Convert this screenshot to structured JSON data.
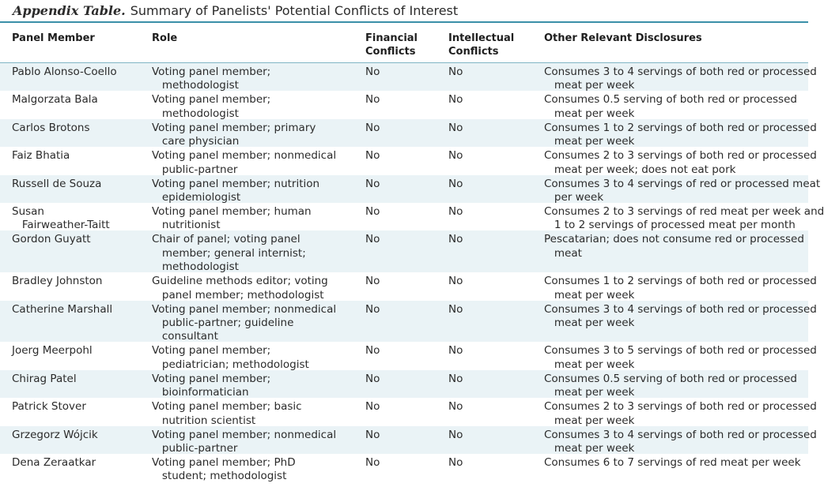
{
  "table": {
    "label": "Appendix Table.",
    "title": "Summary of Panelists' Potential Conflicts of Interest",
    "headers": {
      "name": "Panel Member",
      "role": "Role",
      "financial": "Financial\nConflicts",
      "intellectual": "Intellectual\nConflicts",
      "other": "Other Relevant Disclosures"
    },
    "rows": [
      {
        "name": "Pablo Alonso-Coello",
        "role": "Voting panel member;\n   methodologist",
        "financial": "No",
        "intellectual": "No",
        "other": "Consumes 3 to 4 servings of both red or processed\n   meat per week"
      },
      {
        "name": "Malgorzata Bala",
        "role": "Voting panel member;\n   methodologist",
        "financial": "No",
        "intellectual": "No",
        "other": "Consumes 0.5 serving of both red or processed\n   meat per week"
      },
      {
        "name": "Carlos Brotons",
        "role": "Voting panel member; primary\n   care physician",
        "financial": "No",
        "intellectual": "No",
        "other": "Consumes 1 to 2 servings of both red or processed\n   meat per week"
      },
      {
        "name": "Faiz Bhatia",
        "role": "Voting panel member; nonmedical\n   public-partner",
        "financial": "No",
        "intellectual": "No",
        "other": "Consumes 2 to 3 servings of both red or processed\n   meat per week; does not eat pork"
      },
      {
        "name": "Russell de Souza",
        "role": "Voting panel member; nutrition\n   epidemiologist",
        "financial": "No",
        "intellectual": "No",
        "other": "Consumes 3 to 4 servings of red or processed meat\n   per week"
      },
      {
        "name": "Susan\n   Fairweather-Taitt",
        "role": "Voting panel member; human\n   nutritionist",
        "financial": "No",
        "intellectual": "No",
        "other": "Consumes 2 to 3 servings of red meat per week and\n   1 to 2 servings of processed meat per month"
      },
      {
        "name": "Gordon Guyatt",
        "role": "Chair of panel; voting panel\n   member; general internist;\n   methodologist",
        "financial": "No",
        "intellectual": "No",
        "other": "Pescatarian; does not consume red or processed\n   meat"
      },
      {
        "name": "Bradley Johnston",
        "role": "Guideline methods editor; voting\n   panel member; methodologist",
        "financial": "No",
        "intellectual": "No",
        "other": "Consumes 1 to 2 servings of both red or processed\n   meat per week"
      },
      {
        "name": "Catherine Marshall",
        "role": "Voting panel member; nonmedical\n   public-partner; guideline\n   consultant",
        "financial": "No",
        "intellectual": "No",
        "other": "Consumes 3 to 4 servings of both red or processed\n   meat per week"
      },
      {
        "name": "Joerg Meerpohl",
        "role": "Voting panel member;\n   pediatrician; methodologist",
        "financial": "No",
        "intellectual": "No",
        "other": "Consumes 3 to 5 servings of both red or processed\n   meat per week"
      },
      {
        "name": "Chirag Patel",
        "role": "Voting panel member;\n   bioinformatician",
        "financial": "No",
        "intellectual": "No",
        "other": "Consumes 0.5 serving of both red or processed\n   meat per week"
      },
      {
        "name": "Patrick Stover",
        "role": "Voting panel member; basic\n   nutrition scientist",
        "financial": "No",
        "intellectual": "No",
        "other": "Consumes 2 to 3 servings of both red or processed\n   meat per week"
      },
      {
        "name": "Grzegorz Wójcik",
        "role": "Voting panel member; nonmedical\n   public-partner",
        "financial": "No",
        "intellectual": "No",
        "other": "Consumes 3 to 4 servings of both red or processed\n   meat per week"
      },
      {
        "name": "Dena Zeraatkar",
        "role": "Voting panel member; PhD\n   student; methodologist",
        "financial": "No",
        "intellectual": "No",
        "other": "Consumes 6 to 7 servings of red meat per week"
      }
    ]
  }
}
